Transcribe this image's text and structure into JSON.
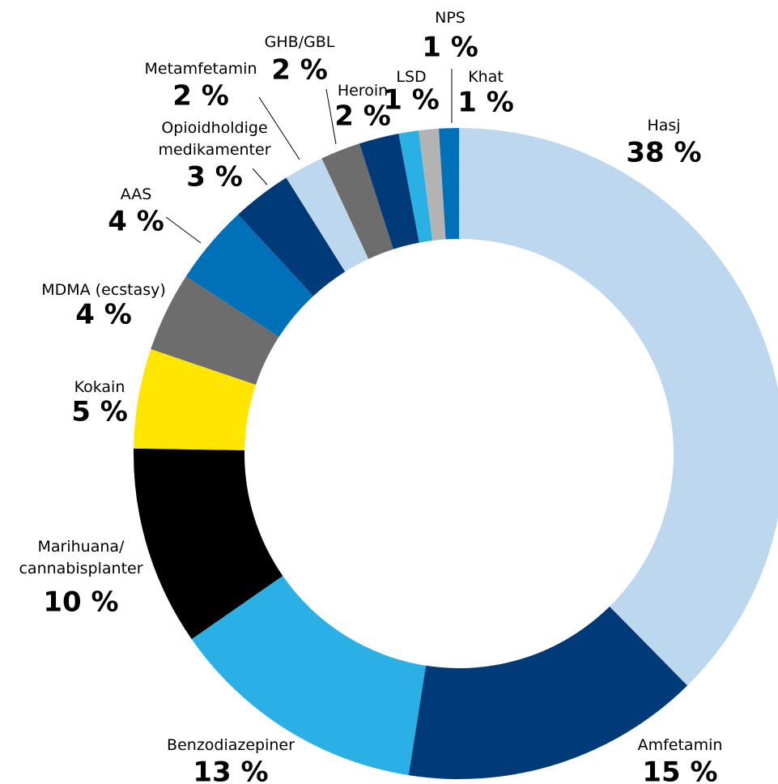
{
  "chart_data": {
    "type": "donut",
    "categories": [
      "Hasj",
      "Amfetamin",
      "Benzodiazepiner",
      "Marihuana/\ncannabisplanter",
      "Kokain",
      "MDMA (ecstasy)",
      "AAS",
      "Opioidholdige\nmedikamenter",
      "Metamfetamin",
      "GHB/GBL",
      "Heroin",
      "LSD",
      "NPS",
      "Khat"
    ],
    "values": [
      38,
      15,
      13,
      10,
      5,
      4,
      4,
      3,
      2,
      2,
      2,
      1,
      1,
      1
    ],
    "value_labels": [
      "38 %",
      "15 %",
      "13 %",
      "10 %",
      "5 %",
      "4 %",
      "4 %",
      "3 %",
      "2 %",
      "2 %",
      "2 %",
      "1 %",
      "1 %",
      "1 %"
    ],
    "colors": [
      "#bdd7ee",
      "#003a78",
      "#2ab0e4",
      "#000000",
      "#ffe600",
      "#6d6d6d",
      "#0070b8",
      "#003a78",
      "#bdd7ee",
      "#6d6d6d",
      "#003a78",
      "#2ab0e4",
      "#b3b3b3",
      "#0070b8"
    ]
  }
}
